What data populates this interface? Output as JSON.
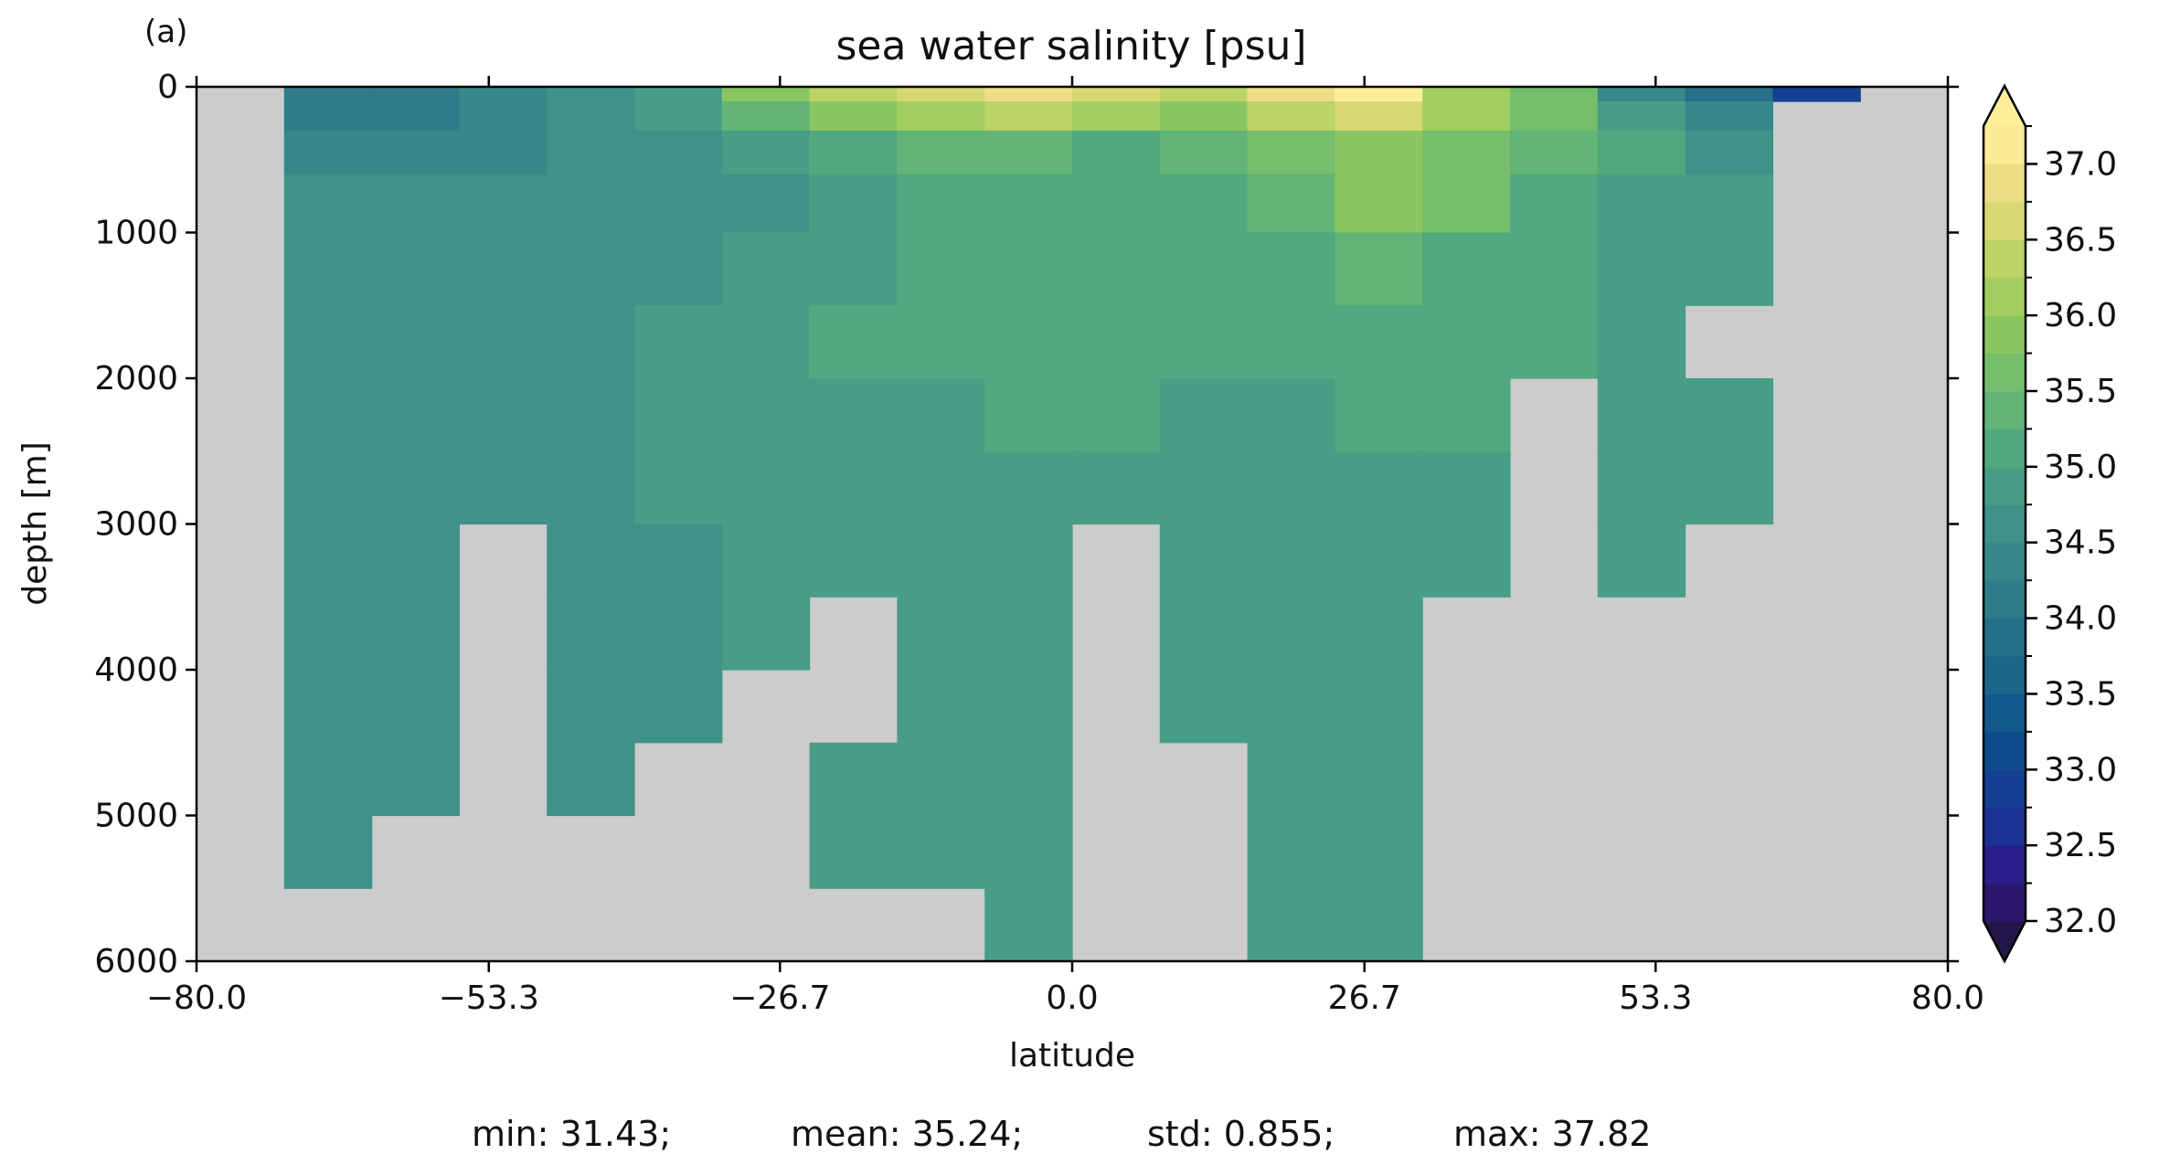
{
  "panel_label": "(a)",
  "chart_data": {
    "type": "heatmap",
    "title": "sea water salinity [psu]",
    "xlabel": "latitude",
    "ylabel": "depth [m]",
    "xlim": [
      -80,
      80
    ],
    "ylim": [
      6000,
      0
    ],
    "y_inverted": true,
    "xticks": [
      "-80.0",
      "-53.3",
      "-26.7",
      "0.0",
      "26.7",
      "53.3",
      "80.0"
    ],
    "xtick_values": [
      -80,
      -53.3,
      -26.7,
      0,
      26.7,
      53.3,
      80
    ],
    "yticks": [
      "0",
      "1000",
      "2000",
      "3000",
      "4000",
      "5000",
      "6000"
    ],
    "ytick_values": [
      0,
      1000,
      2000,
      3000,
      4000,
      5000,
      6000
    ],
    "colorbar": {
      "min": 32.0,
      "max": 37.0,
      "step": 0.25,
      "extend": "both",
      "tick_labels": [
        "32.0",
        "32.5",
        "33.0",
        "33.5",
        "34.0",
        "34.5",
        "35.0",
        "35.5",
        "36.0",
        "36.5",
        "37.0"
      ],
      "tick_values": [
        32.0,
        32.5,
        33.0,
        33.5,
        34.0,
        34.5,
        35.0,
        35.5,
        36.0,
        36.5,
        37.0
      ],
      "colormap": "haline",
      "colors": [
        "#2a186c",
        "#2a1f8a",
        "#1b3193",
        "#153f92",
        "#104c8d",
        "#14598b",
        "#1d6589",
        "#277089",
        "#2f7b89",
        "#388789",
        "#3f9287",
        "#489e84",
        "#52a97f",
        "#62b477",
        "#76be6c",
        "#8ac762",
        "#a2cd5f",
        "#bcd365",
        "#d6d972",
        "#edde85",
        "#fbeb95"
      ],
      "below_color": "#23174c",
      "above_color": "#fdef9a"
    },
    "land_color": "#cccccc",
    "latitude_edges": [
      -80,
      -72,
      -64,
      -56,
      -48,
      -40,
      -32,
      -24,
      -16,
      -8,
      0,
      8,
      16,
      24,
      32,
      40,
      48,
      56,
      64,
      72,
      80
    ],
    "depth_edges": [
      0,
      100,
      300,
      600,
      1000,
      1500,
      2000,
      2500,
      3000,
      3500,
      4000,
      4500,
      5000,
      5500,
      6000
    ],
    "salinity_psu": [
      [
        null,
        34.0,
        34.1,
        34.3,
        34.5,
        34.9,
        35.8,
        36.3,
        36.7,
        36.9,
        36.6,
        36.4,
        36.8,
        37.2,
        36.2,
        35.5,
        34.4,
        33.8,
        32.8,
        null
      ],
      [
        null,
        34.2,
        34.2,
        34.3,
        34.5,
        34.8,
        35.3,
        35.8,
        36.2,
        36.3,
        36.0,
        35.9,
        36.3,
        36.6,
        36.0,
        35.5,
        34.8,
        34.4,
        null,
        null
      ],
      [
        null,
        34.4,
        34.4,
        34.4,
        34.5,
        34.6,
        34.9,
        35.1,
        35.3,
        35.3,
        35.2,
        35.3,
        35.6,
        35.9,
        35.7,
        35.4,
        35.0,
        34.7,
        null,
        null
      ],
      [
        null,
        34.5,
        34.5,
        34.5,
        34.5,
        34.6,
        34.7,
        34.9,
        35.0,
        35.0,
        35.0,
        35.1,
        35.3,
        35.8,
        35.6,
        35.2,
        34.9,
        34.8,
        null,
        null
      ],
      [
        null,
        34.6,
        34.6,
        34.6,
        34.6,
        34.7,
        34.8,
        34.9,
        35.1,
        35.1,
        35.1,
        35.1,
        35.2,
        35.4,
        35.2,
        35.0,
        34.9,
        34.9,
        null,
        null
      ],
      [
        null,
        34.6,
        34.6,
        34.6,
        34.7,
        34.8,
        34.9,
        35.0,
        35.1,
        35.1,
        35.1,
        35.1,
        35.1,
        35.2,
        35.1,
        35.0,
        34.9,
        null,
        null,
        null
      ],
      [
        null,
        34.6,
        34.7,
        34.7,
        34.7,
        34.8,
        34.9,
        34.9,
        34.9,
        35.0,
        35.0,
        34.9,
        34.9,
        35.0,
        35.0,
        null,
        34.9,
        34.9,
        null,
        null
      ],
      [
        null,
        34.7,
        34.7,
        34.7,
        34.7,
        34.8,
        34.8,
        34.9,
        34.9,
        34.9,
        34.9,
        34.9,
        34.9,
        34.9,
        34.9,
        null,
        34.9,
        34.9,
        null,
        null
      ],
      [
        null,
        34.7,
        34.7,
        null,
        34.7,
        34.7,
        34.8,
        34.9,
        34.9,
        34.9,
        null,
        34.9,
        34.9,
        34.9,
        34.9,
        null,
        34.9,
        null,
        null,
        null
      ],
      [
        null,
        34.7,
        34.7,
        null,
        34.7,
        34.7,
        34.8,
        null,
        34.9,
        34.9,
        null,
        34.9,
        34.9,
        34.9,
        null,
        null,
        null,
        null,
        null,
        null
      ],
      [
        null,
        34.7,
        34.7,
        null,
        34.7,
        34.7,
        null,
        null,
        34.9,
        34.9,
        null,
        34.9,
        34.9,
        34.9,
        null,
        null,
        null,
        null,
        null,
        null
      ],
      [
        null,
        34.7,
        34.7,
        null,
        34.7,
        null,
        null,
        34.9,
        34.9,
        34.9,
        null,
        null,
        34.9,
        34.9,
        null,
        null,
        null,
        null,
        null,
        null
      ],
      [
        null,
        34.7,
        null,
        null,
        null,
        null,
        null,
        34.9,
        34.9,
        34.9,
        null,
        null,
        34.9,
        34.9,
        null,
        null,
        null,
        null,
        null,
        null
      ],
      [
        null,
        null,
        null,
        null,
        null,
        null,
        null,
        null,
        null,
        34.9,
        null,
        null,
        34.9,
        34.9,
        null,
        null,
        null,
        null,
        null,
        null
      ]
    ]
  },
  "stats": {
    "min": "min: 31.43;",
    "mean": "mean: 35.24;",
    "std": "std: 0.855;",
    "max": "max: 37.82"
  }
}
